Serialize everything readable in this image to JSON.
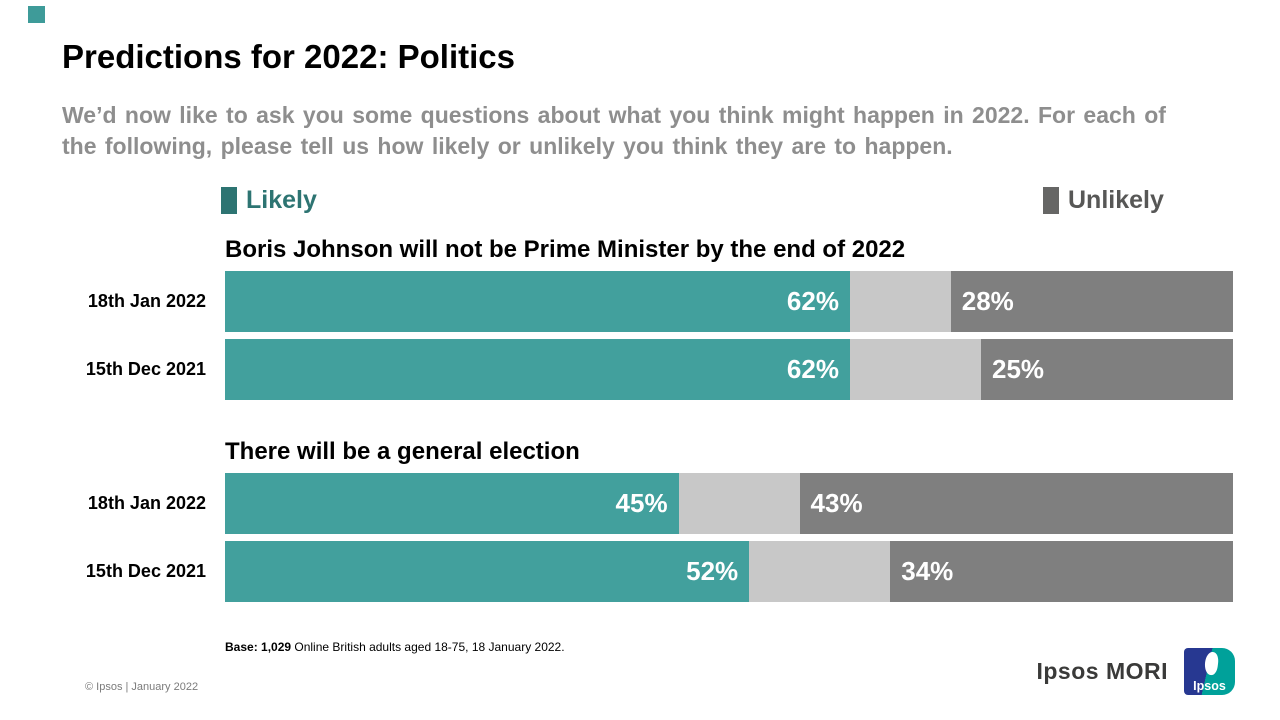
{
  "slide": {
    "accent_color": "#3E9B99",
    "title": "Predictions for 2022: Politics",
    "subtitle": "We’d now like to ask you some questions about what you think might happen in 2022. For each of the following, please tell us how likely or unlikely you think they are to happen."
  },
  "legend": {
    "likely": {
      "label": "Likely",
      "swatch_color": "#2D7472",
      "text_color": "#2D7472"
    },
    "unlikely": {
      "label": "Unlikely",
      "swatch_color": "#666665",
      "text_color": "#575756"
    }
  },
  "chart_data": {
    "type": "bar",
    "variant": "horizontal-stacked",
    "unit": "%",
    "xlim": [
      0,
      100
    ],
    "series_labels": [
      "Likely",
      "Unlikely"
    ],
    "colors": {
      "likely": "#42A09D",
      "middle": "#C8C8C8",
      "unlikely": "#7F7F7F"
    },
    "sections": [
      {
        "title": "Boris Johnson will not be Prime Minister by the end of 2022",
        "rows": [
          {
            "category": "18th Jan 2022",
            "likely": 62,
            "unlikely": 28
          },
          {
            "category": "15th Dec 2021",
            "likely": 62,
            "unlikely": 25
          }
        ]
      },
      {
        "title": "There will be a general election",
        "rows": [
          {
            "category": "18th Jan 2022",
            "likely": 45,
            "unlikely": 43
          },
          {
            "category": "15th Dec 2021",
            "likely": 52,
            "unlikely": 34
          }
        ]
      }
    ]
  },
  "footnote": {
    "bold_part": "Base: 1,029",
    "regular_part": " Online British adults aged 18-75, 18 January 2022."
  },
  "footer": {
    "copyright": "© Ipsos | January 2022",
    "brand": "Ipsos MORI",
    "logo_text": "Ipsos"
  }
}
